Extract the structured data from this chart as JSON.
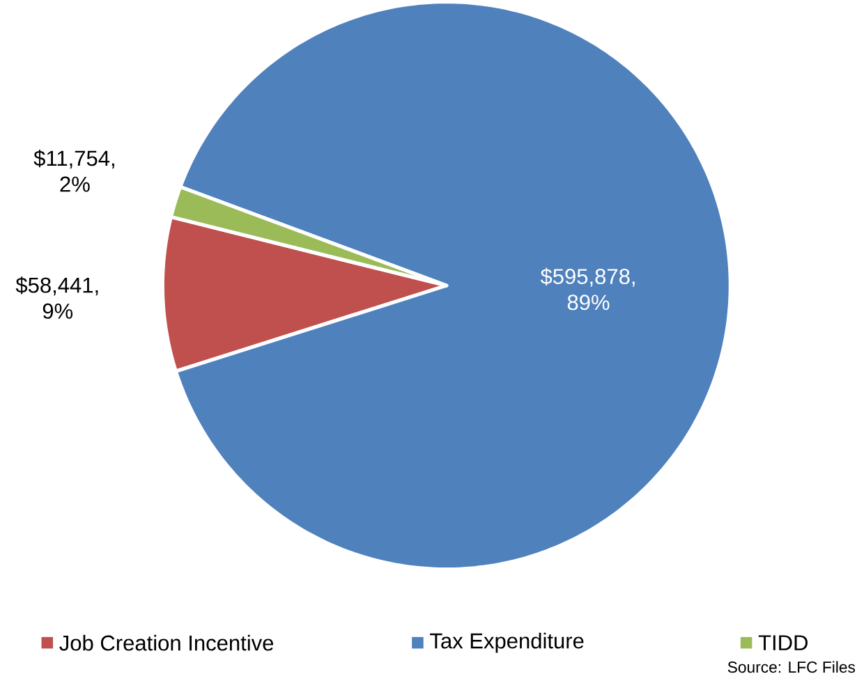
{
  "chart_data": {
    "type": "pie",
    "categories": [
      "Job Creation Incentive",
      "Tax Expenditure",
      "TIDD"
    ],
    "values": [
      58441,
      595878,
      11754
    ],
    "colors": [
      "#c0504d",
      "#4f81bd",
      "#9bbb59"
    ],
    "value_labels": [
      "$58,441, 9%",
      "$595,878, 89%",
      "$11,754, 2%"
    ],
    "legend": "bottom",
    "annotations": [
      "Source: LFC Files"
    ]
  }
}
